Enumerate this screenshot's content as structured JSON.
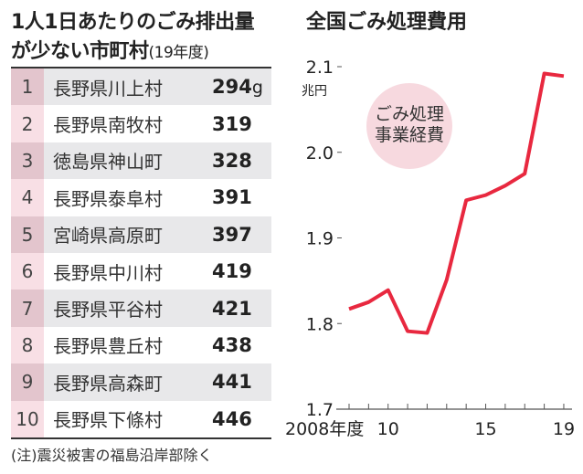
{
  "left_title": {
    "line1": "1人1日あたりのごみ排出量",
    "line2": "が少ない市町村",
    "sub": "(19年度)"
  },
  "table": {
    "unit": "g",
    "rows": [
      {
        "rank": "1",
        "name": "長野県川上村",
        "value": "294"
      },
      {
        "rank": "2",
        "name": "長野県南牧村",
        "value": "319"
      },
      {
        "rank": "3",
        "name": "徳島県神山町",
        "value": "328"
      },
      {
        "rank": "4",
        "name": "長野県泰阜村",
        "value": "391"
      },
      {
        "rank": "5",
        "name": "宮崎県高原町",
        "value": "397"
      },
      {
        "rank": "6",
        "name": "長野県中川村",
        "value": "419"
      },
      {
        "rank": "7",
        "name": "長野県平谷村",
        "value": "421"
      },
      {
        "rank": "8",
        "name": "長野県豊丘村",
        "value": "438"
      },
      {
        "rank": "9",
        "name": "長野県高森町",
        "value": "441"
      },
      {
        "rank": "10",
        "name": "長野県下條村",
        "value": "446"
      }
    ]
  },
  "note": "(注)震災被害の福島沿岸部除く",
  "chart_data": {
    "type": "line",
    "title": "全国ごみ処理費用",
    "ylabel": "兆円",
    "legend": [
      "ごみ処理",
      "事業経費"
    ],
    "x": [
      2008,
      2009,
      2010,
      2011,
      2012,
      2013,
      2014,
      2015,
      2016,
      2017,
      2018,
      2019
    ],
    "series": [
      {
        "name": "ごみ処理事業経費",
        "values": [
          1.817,
          1.825,
          1.839,
          1.791,
          1.789,
          1.851,
          1.944,
          1.95,
          1.961,
          1.975,
          2.092,
          2.089
        ]
      }
    ],
    "ylim": [
      1.7,
      2.1
    ],
    "yticks": [
      "1.7",
      "1.8",
      "1.9",
      "2.0",
      "2.1"
    ],
    "xticklabels": [
      {
        "x": 2008,
        "label": "2008年度"
      },
      {
        "x": 2010,
        "label": "10"
      },
      {
        "x": 2015,
        "label": "15"
      },
      {
        "x": 2019,
        "label": "19"
      }
    ],
    "line_color": "#e8283f",
    "bubble_color": "#f7d9df"
  }
}
